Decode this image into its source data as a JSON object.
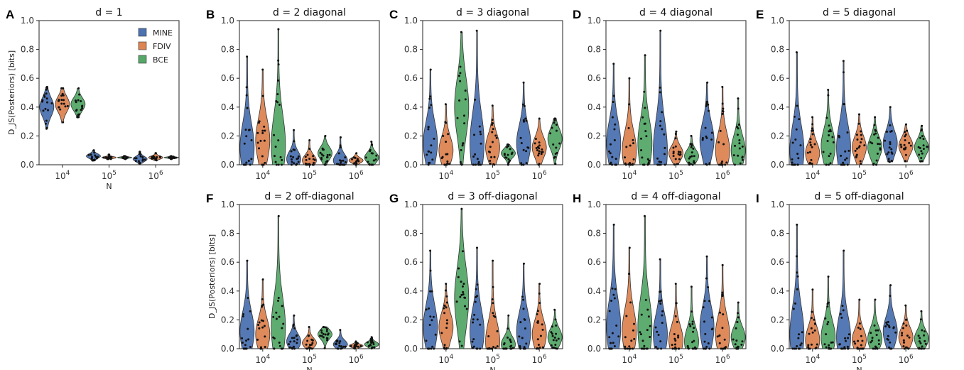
{
  "figure": {
    "ylabel": "D_JS(Posteriors) [bits]",
    "xlabel": "N",
    "x_ticks": [
      "10^4",
      "10^5",
      "10^6"
    ],
    "y_ticks": [
      "0.0",
      "0.2",
      "0.4",
      "0.6",
      "0.8",
      "1.0"
    ],
    "legend": [
      "MINE",
      "FDIV",
      "BCE"
    ],
    "colors": {
      "MINE": "#4c72b0",
      "FDIV": "#dd8452",
      "BCE": "#55a868"
    }
  },
  "chart_data": [
    {
      "letter": "A",
      "title": "d = 1",
      "type": "violin",
      "ylim": [
        0,
        1
      ],
      "categories": [
        "10^4",
        "10^5",
        "10^6"
      ],
      "series": [
        {
          "name": "MINE",
          "ranges": [
            [
              0.25,
              0.54
            ],
            [
              0.03,
              0.1
            ],
            [
              0.01,
              0.09
            ]
          ],
          "medians": [
            0.4,
            0.06,
            0.04
          ]
        },
        {
          "name": "FDIV",
          "ranges": [
            [
              0.29,
              0.53
            ],
            [
              0.04,
              0.07
            ],
            [
              0.03,
              0.08
            ]
          ],
          "medians": [
            0.42,
            0.05,
            0.05
          ]
        },
        {
          "name": "BCE",
          "ranges": [
            [
              0.33,
              0.53
            ],
            [
              0.04,
              0.06
            ],
            [
              0.04,
              0.06
            ]
          ],
          "medians": [
            0.42,
            0.05,
            0.05
          ]
        }
      ]
    },
    {
      "letter": "B",
      "title": "d = 2 diagonal",
      "type": "violin",
      "ylim": [
        0,
        1
      ],
      "categories": [
        "10^4",
        "10^5",
        "10^6"
      ],
      "series": [
        {
          "name": "MINE",
          "ranges": [
            [
              0.0,
              0.75
            ],
            [
              0.0,
              0.24
            ],
            [
              0.0,
              0.19
            ]
          ],
          "medians": [
            0.12,
            0.04,
            0.03
          ]
        },
        {
          "name": "FDIV",
          "ranges": [
            [
              0.0,
              0.66
            ],
            [
              0.0,
              0.17
            ],
            [
              0.0,
              0.08
            ]
          ],
          "medians": [
            0.17,
            0.03,
            0.03
          ]
        },
        {
          "name": "BCE",
          "ranges": [
            [
              0.0,
              0.94
            ],
            [
              0.0,
              0.2
            ],
            [
              0.0,
              0.16
            ]
          ],
          "medians": [
            0.14,
            0.08,
            0.05
          ]
        }
      ]
    },
    {
      "letter": "C",
      "title": "d = 3 diagonal",
      "type": "violin",
      "ylim": [
        0,
        1
      ],
      "categories": [
        "10^4",
        "10^5",
        "10^6"
      ],
      "series": [
        {
          "name": "MINE",
          "ranges": [
            [
              0.0,
              0.66
            ],
            [
              0.0,
              0.93
            ],
            [
              0.0,
              0.57
            ]
          ],
          "medians": [
            0.15,
            0.15,
            0.15
          ]
        },
        {
          "name": "FDIV",
          "ranges": [
            [
              0.0,
              0.42
            ],
            [
              0.0,
              0.41
            ],
            [
              0.0,
              0.32
            ]
          ],
          "medians": [
            0.1,
            0.12,
            0.12
          ]
        },
        {
          "name": "BCE",
          "ranges": [
            [
              0.0,
              0.92
            ],
            [
              0.0,
              0.14
            ],
            [
              0.0,
              0.32
            ]
          ],
          "medians": [
            0.4,
            0.08,
            0.18
          ]
        }
      ]
    },
    {
      "letter": "D",
      "title": "d = 4 diagonal",
      "type": "violin",
      "ylim": [
        0,
        1
      ],
      "categories": [
        "10^4",
        "10^5",
        "10^6"
      ],
      "series": [
        {
          "name": "MINE",
          "ranges": [
            [
              0.0,
              0.7
            ],
            [
              0.0,
              0.93
            ],
            [
              0.0,
              0.57
            ]
          ],
          "medians": [
            0.15,
            0.1,
            0.17
          ]
        },
        {
          "name": "FDIV",
          "ranges": [
            [
              0.0,
              0.6
            ],
            [
              0.0,
              0.23
            ],
            [
              0.0,
              0.54
            ]
          ],
          "medians": [
            0.1,
            0.08,
            0.1
          ]
        },
        {
          "name": "BCE",
          "ranges": [
            [
              0.0,
              0.76
            ],
            [
              0.0,
              0.2
            ],
            [
              0.0,
              0.46
            ]
          ],
          "medians": [
            0.15,
            0.06,
            0.1
          ]
        }
      ]
    },
    {
      "letter": "E",
      "title": "d = 5 diagonal",
      "type": "violin",
      "ylim": [
        0,
        1
      ],
      "categories": [
        "10^4",
        "10^5",
        "10^6"
      ],
      "series": [
        {
          "name": "MINE",
          "ranges": [
            [
              0.0,
              0.78
            ],
            [
              0.0,
              0.72
            ],
            [
              0.02,
              0.4
            ]
          ],
          "medians": [
            0.1,
            0.12,
            0.15
          ]
        },
        {
          "name": "FDIV",
          "ranges": [
            [
              0.0,
              0.33
            ],
            [
              0.0,
              0.35
            ],
            [
              0.02,
              0.28
            ]
          ],
          "medians": [
            0.08,
            0.12,
            0.13
          ]
        },
        {
          "name": "BCE",
          "ranges": [
            [
              0.0,
              0.52
            ],
            [
              0.0,
              0.33
            ],
            [
              0.02,
              0.27
            ]
          ],
          "medians": [
            0.13,
            0.12,
            0.12
          ]
        }
      ]
    },
    {
      "letter": "F",
      "title": "d = 2 off-diagonal",
      "type": "violin",
      "ylim": [
        0,
        1
      ],
      "categories": [
        "10^4",
        "10^5",
        "10^6"
      ],
      "series": [
        {
          "name": "MINE",
          "ranges": [
            [
              0.0,
              0.61
            ],
            [
              0.0,
              0.23
            ],
            [
              0.0,
              0.13
            ]
          ],
          "medians": [
            0.12,
            0.05,
            0.03
          ]
        },
        {
          "name": "FDIV",
          "ranges": [
            [
              0.0,
              0.48
            ],
            [
              0.0,
              0.15
            ],
            [
              0.0,
              0.05
            ]
          ],
          "medians": [
            0.1,
            0.04,
            0.02
          ]
        },
        {
          "name": "BCE",
          "ranges": [
            [
              0.0,
              0.92
            ],
            [
              0.0,
              0.15
            ],
            [
              0.0,
              0.08
            ]
          ],
          "medians": [
            0.15,
            0.1,
            0.03
          ]
        }
      ]
    },
    {
      "letter": "G",
      "title": "d = 3 off-diagonal",
      "type": "violin",
      "ylim": [
        0,
        1
      ],
      "categories": [
        "10^4",
        "10^5",
        "10^6"
      ],
      "series": [
        {
          "name": "MINE",
          "ranges": [
            [
              0.0,
              0.68
            ],
            [
              0.0,
              0.7
            ],
            [
              0.0,
              0.59
            ]
          ],
          "medians": [
            0.15,
            0.12,
            0.12
          ]
        },
        {
          "name": "FDIV",
          "ranges": [
            [
              0.0,
              0.45
            ],
            [
              0.0,
              0.61
            ],
            [
              0.0,
              0.45
            ]
          ],
          "medians": [
            0.15,
            0.05,
            0.1
          ]
        },
        {
          "name": "BCE",
          "ranges": [
            [
              0.0,
              0.97
            ],
            [
              0.0,
              0.23
            ],
            [
              0.0,
              0.27
            ]
          ],
          "medians": [
            0.35,
            0.03,
            0.08
          ]
        }
      ]
    },
    {
      "letter": "H",
      "title": "d = 4 off-diagonal",
      "type": "violin",
      "ylim": [
        0,
        1
      ],
      "categories": [
        "10^4",
        "10^5",
        "10^6"
      ],
      "series": [
        {
          "name": "MINE",
          "ranges": [
            [
              0.0,
              0.86
            ],
            [
              0.0,
              0.62
            ],
            [
              0.0,
              0.64
            ]
          ],
          "medians": [
            0.15,
            0.1,
            0.15
          ]
        },
        {
          "name": "FDIV",
          "ranges": [
            [
              0.0,
              0.7
            ],
            [
              0.0,
              0.45
            ],
            [
              0.0,
              0.58
            ]
          ],
          "medians": [
            0.12,
            0.06,
            0.1
          ]
        },
        {
          "name": "BCE",
          "ranges": [
            [
              0.0,
              0.92
            ],
            [
              0.0,
              0.43
            ],
            [
              0.0,
              0.32
            ]
          ],
          "medians": [
            0.15,
            0.05,
            0.08
          ]
        }
      ]
    },
    {
      "letter": "I",
      "title": "d = 5 off-diagonal",
      "type": "violin",
      "ylim": [
        0,
        1
      ],
      "categories": [
        "10^4",
        "10^5",
        "10^6"
      ],
      "series": [
        {
          "name": "MINE",
          "ranges": [
            [
              0.0,
              0.86
            ],
            [
              0.0,
              0.68
            ],
            [
              0.0,
              0.44
            ]
          ],
          "medians": [
            0.1,
            0.08,
            0.12
          ]
        },
        {
          "name": "FDIV",
          "ranges": [
            [
              0.0,
              0.41
            ],
            [
              0.0,
              0.34
            ],
            [
              0.0,
              0.3
            ]
          ],
          "medians": [
            0.06,
            0.06,
            0.08
          ]
        },
        {
          "name": "BCE",
          "ranges": [
            [
              0.0,
              0.5
            ],
            [
              0.0,
              0.34
            ],
            [
              0.0,
              0.26
            ]
          ],
          "medians": [
            0.08,
            0.07,
            0.07
          ]
        }
      ]
    }
  ]
}
